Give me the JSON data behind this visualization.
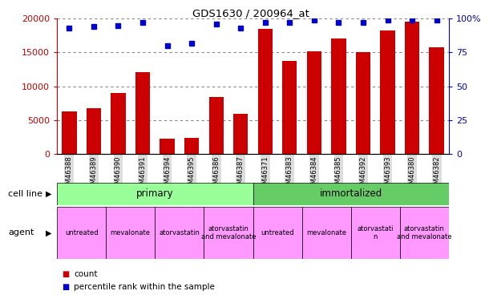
{
  "title": "GDS1630 / 200964_at",
  "samples": [
    "GSM46388",
    "GSM46389",
    "GSM46390",
    "GSM46391",
    "GSM46394",
    "GSM46395",
    "GSM46386",
    "GSM46387",
    "GSM46371",
    "GSM46383",
    "GSM46384",
    "GSM46385",
    "GSM46392",
    "GSM46393",
    "GSM46380",
    "GSM46382"
  ],
  "bar_values": [
    6300,
    6700,
    9000,
    12100,
    2200,
    2400,
    8400,
    5900,
    18500,
    13700,
    15100,
    17000,
    15000,
    18200,
    19500,
    15700
  ],
  "percentile_values": [
    93,
    94,
    95,
    97,
    80,
    82,
    96,
    93,
    97,
    97,
    99,
    97,
    97,
    99,
    99,
    99
  ],
  "bar_color": "#cc0000",
  "percentile_color": "#0000cc",
  "ylim_left": [
    0,
    20000
  ],
  "ylim_right": [
    0,
    100
  ],
  "yticks_left": [
    0,
    5000,
    10000,
    15000,
    20000
  ],
  "yticks_right": [
    0,
    25,
    50,
    75,
    100
  ],
  "ytick_labels_right": [
    "0",
    "25",
    "50",
    "75",
    "100%"
  ],
  "cell_line_groups": [
    {
      "label": "primary",
      "start": 0,
      "end": 8,
      "color": "#99ff99"
    },
    {
      "label": "immortalized",
      "start": 8,
      "end": 16,
      "color": "#66cc66"
    }
  ],
  "agent_groups": [
    {
      "label": "untreated",
      "start": 0,
      "end": 2,
      "color": "#ff99ff"
    },
    {
      "label": "mevalonate",
      "start": 2,
      "end": 4,
      "color": "#ff99ff"
    },
    {
      "label": "atorvastatin",
      "start": 4,
      "end": 6,
      "color": "#ff99ff"
    },
    {
      "label": "atorvastatin\nand mevalonate",
      "start": 6,
      "end": 8,
      "color": "#ff99ff"
    },
    {
      "label": "untreated",
      "start": 8,
      "end": 10,
      "color": "#ff99ff"
    },
    {
      "label": "mevalonate",
      "start": 10,
      "end": 12,
      "color": "#ff99ff"
    },
    {
      "label": "atorvastati\nn",
      "start": 12,
      "end": 14,
      "color": "#ff99ff"
    },
    {
      "label": "atorvastatin\nand mevalonate",
      "start": 14,
      "end": 16,
      "color": "#ff99ff"
    }
  ],
  "cell_line_label": "cell line",
  "agent_label": "agent",
  "legend_count_label": "count",
  "legend_percentile_label": "percentile rank within the sample",
  "bg_color": "#ffffff",
  "tick_bg_color": "#dddddd"
}
